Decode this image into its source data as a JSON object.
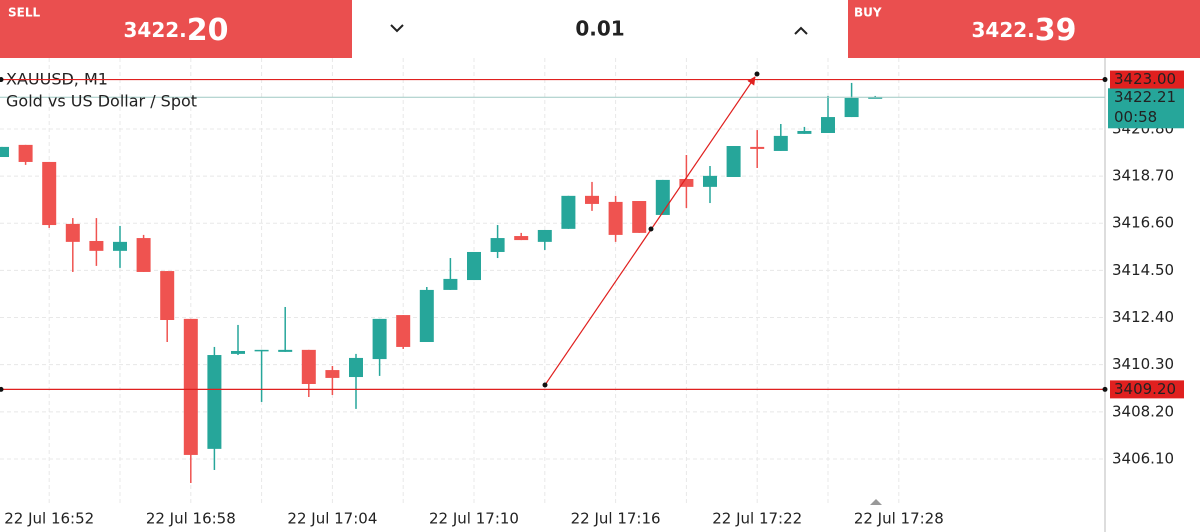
{
  "trade_bar": {
    "sell": {
      "label": "SELL",
      "price_integer": "3422.",
      "price_fraction": "20"
    },
    "volume": "0.01",
    "buy": {
      "label": "BUY",
      "price_integer": "3422.",
      "price_fraction": "39"
    }
  },
  "chart_data": {
    "type": "candlestick",
    "title": "XAUUSD, M1",
    "subtitle": "Gold vs US Dollar / Spot",
    "categories": [
      null,
      null,
      "22 Jul 16:52",
      null,
      null,
      null,
      null,
      null,
      "22 Jul 16:58",
      null,
      null,
      null,
      null,
      null,
      "22 Jul 17:04",
      null,
      null,
      null,
      null,
      null,
      "22 Jul 17:10",
      null,
      null,
      null,
      null,
      null,
      "22 Jul 17:16",
      null,
      null,
      null,
      null,
      null,
      "22 Jul 17:22",
      null,
      null,
      null,
      null,
      null,
      "22 Jul 17:28"
    ],
    "open": [
      3419.55,
      3420.09,
      3419.33,
      3416.57,
      3415.81,
      3415.37,
      3415.94,
      3414.47,
      3412.34,
      3406.55,
      3410.78,
      3410.91,
      3410.87,
      3410.96,
      3410.06,
      3409.75,
      3410.55,
      3412.51,
      3411.31,
      3413.63,
      3414.07,
      3415.32,
      3416.03,
      3415.77,
      3416.35,
      3417.82,
      3417.55,
      3417.59,
      3416.97,
      3418.57,
      3418.22,
      3418.66,
      3420.0,
      3419.82,
      3420.58,
      3420.62,
      3421.33,
      3422.18,
      null
    ],
    "high": [
      3420.0,
      3420.09,
      3419.33,
      3416.83,
      3416.83,
      3416.48,
      3416.08,
      3414.47,
      3412.34,
      3411.09,
      3412.07,
      3410.96,
      3412.87,
      3410.96,
      3410.24,
      3410.78,
      3412.34,
      3412.51,
      3413.76,
      3415.05,
      3415.32,
      3416.52,
      3416.17,
      3416.3,
      3417.82,
      3418.44,
      3417.82,
      3417.59,
      3418.53,
      3419.64,
      3419.15,
      3420.04,
      3420.75,
      3421.02,
      3420.89,
      3422.27,
      3422.85,
      3422.27,
      null
    ],
    "low": [
      3419.55,
      3419.2,
      3416.39,
      3414.43,
      3414.7,
      3414.61,
      3414.43,
      3411.31,
      3405.03,
      3405.61,
      3410.73,
      3408.64,
      3410.87,
      3408.86,
      3408.95,
      3408.33,
      3409.8,
      3411.0,
      3411.31,
      3413.63,
      3414.07,
      3415.05,
      3415.85,
      3415.41,
      3416.35,
      3417.15,
      3415.77,
      3416.17,
      3416.97,
      3417.28,
      3417.5,
      3418.66,
      3419.06,
      3419.82,
      3420.58,
      3420.62,
      3421.33,
      3422.18,
      null
    ],
    "close": [
      3420.0,
      3419.33,
      3416.52,
      3415.77,
      3415.37,
      3415.77,
      3414.43,
      3412.29,
      3406.28,
      3410.73,
      3410.91,
      3410.96,
      3410.96,
      3409.44,
      3409.71,
      3410.6,
      3412.34,
      3411.09,
      3413.63,
      3414.12,
      3415.32,
      3415.94,
      3415.85,
      3416.3,
      3417.82,
      3417.46,
      3416.08,
      3416.17,
      3418.53,
      3418.22,
      3418.71,
      3420.04,
      3419.91,
      3420.49,
      3420.71,
      3421.33,
      3422.18,
      3422.21,
      null
    ],
    "up_color": "#26a69a",
    "down_color": "#ef5350",
    "ylim": [
      3404.05,
      3423.96
    ],
    "yticks": [
      {
        "value": 3406.1,
        "label": "3406.10"
      },
      {
        "value": 3408.2,
        "label": "3408.20"
      },
      {
        "value": 3410.3,
        "label": "3410.30"
      },
      {
        "value": 3412.4,
        "label": "3412.40"
      },
      {
        "value": 3414.5,
        "label": "3414.50"
      },
      {
        "value": 3416.6,
        "label": "3416.60"
      },
      {
        "value": 3418.7,
        "label": "3418.70"
      },
      {
        "value": 3420.8,
        "label": "3420.80"
      }
    ],
    "grid": true,
    "price_lines": [
      {
        "value": 3423.0,
        "label": "3423.00"
      },
      {
        "value": 3409.2,
        "label": "3409.20"
      }
    ],
    "line_color": "#e0201f",
    "current_price": {
      "value": 3422.21,
      "label": "3422.21"
    },
    "countdown": "00:58"
  }
}
